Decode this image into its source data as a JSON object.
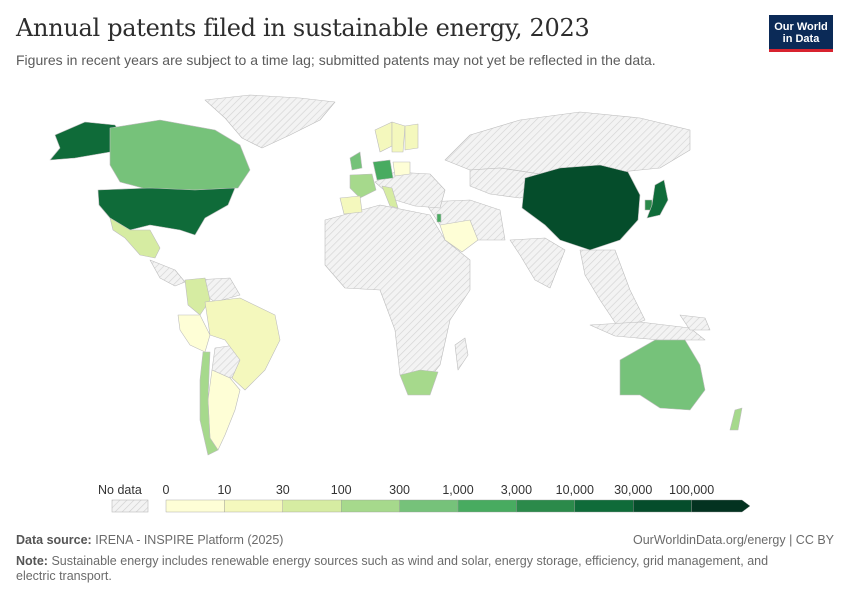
{
  "header": {
    "title": "Annual patents filed in sustainable energy, 2023",
    "subtitle": "Figures in recent years are subject to a time lag; submitted patents may not yet be reflected in the data."
  },
  "logo": {
    "line1": "Our World",
    "line2": "in Data"
  },
  "legend": {
    "no_data_label": "No data",
    "tick_labels": [
      "0",
      "10",
      "30",
      "100",
      "300",
      "1,000",
      "3,000",
      "10,000",
      "30,000",
      "100,000"
    ],
    "colors": [
      "#fefed6",
      "#f4f8bd",
      "#d6eca2",
      "#a6d98c",
      "#76c27a",
      "#48ab60",
      "#2b8a4a",
      "#0f6b39",
      "#054d2b",
      "#033220"
    ]
  },
  "map_data": {
    "metric": "Annual patents filed in sustainable energy",
    "year": "2023",
    "countries": [
      {
        "name": "China",
        "bin": 8
      },
      {
        "name": "United States",
        "bin": 7
      },
      {
        "name": "Japan",
        "bin": 7
      },
      {
        "name": "Alaska (US)",
        "bin": 7
      },
      {
        "name": "South Korea",
        "bin": 6
      },
      {
        "name": "Germany",
        "bin": 5
      },
      {
        "name": "Canada",
        "bin": 4
      },
      {
        "name": "Australia",
        "bin": 4
      },
      {
        "name": "South Africa",
        "bin": 3
      },
      {
        "name": "France",
        "bin": 3
      },
      {
        "name": "United Kingdom",
        "bin": 4
      },
      {
        "name": "Colombia",
        "bin": 2
      },
      {
        "name": "Mexico",
        "bin": 2
      },
      {
        "name": "Chile",
        "bin": 3
      },
      {
        "name": "Brazil",
        "bin": 1
      },
      {
        "name": "Argentina",
        "bin": 0
      },
      {
        "name": "Peru",
        "bin": 0
      },
      {
        "name": "Spain",
        "bin": 1
      },
      {
        "name": "Saudi Arabia",
        "bin": 0
      },
      {
        "name": "Sweden",
        "bin": 1
      },
      {
        "name": "Finland",
        "bin": 1
      },
      {
        "name": "Norway",
        "bin": 1
      },
      {
        "name": "Italy",
        "bin": 2
      },
      {
        "name": "Poland",
        "bin": 0
      },
      {
        "name": "Israel",
        "bin": 5
      },
      {
        "name": "New Zealand",
        "bin": 3
      }
    ]
  },
  "footer": {
    "source_label": "Data source:",
    "source_text": "IRENA - INSPIRE Platform (2025)",
    "credit": "OurWorldinData.org/energy | CC BY",
    "note_label": "Note:",
    "note_text": "Sustainable energy includes renewable energy sources such as wind and solar, energy storage, efficiency, grid management, and electric transport."
  }
}
